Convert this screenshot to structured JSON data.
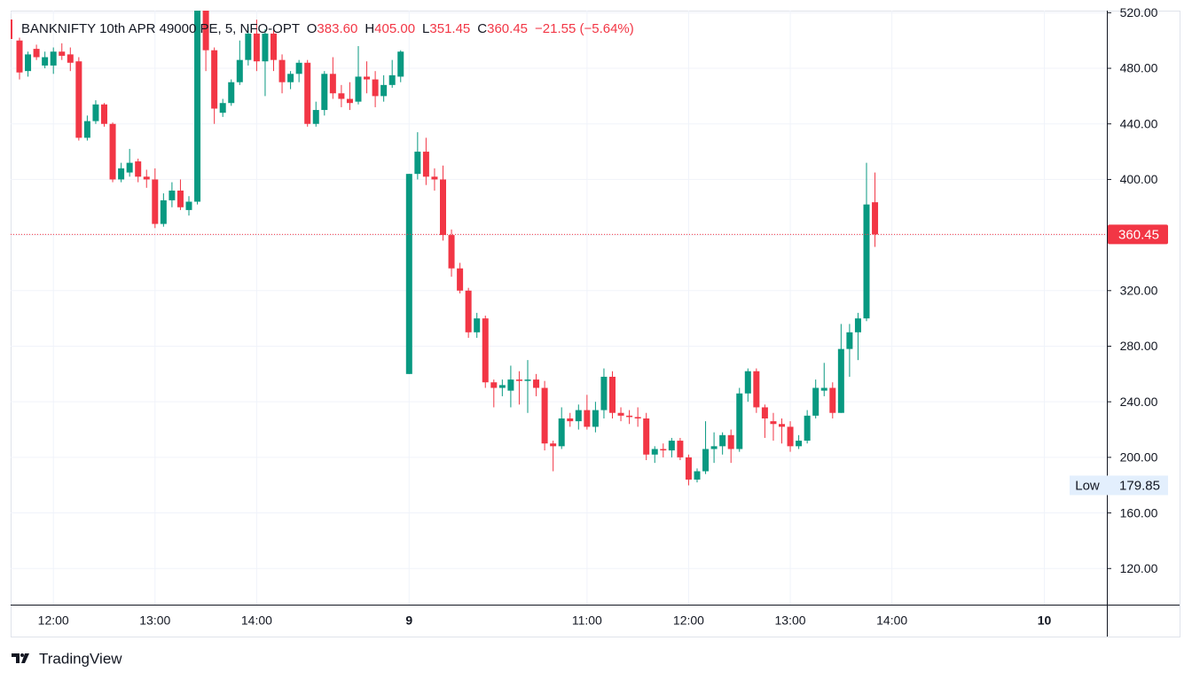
{
  "chart_data": {
    "type": "candlestick",
    "legend": {
      "symbol": "BANKNIFTY 10th APR 49000 PE, 5, NFO-OPT",
      "o_label": "O",
      "o": "383.60",
      "h_label": "H",
      "h": "405.00",
      "l_label": "L",
      "l": "351.45",
      "c_label": "C",
      "c": "360.45",
      "change": "−21.55 (−5.64%)"
    },
    "last_price_label": "360.45",
    "low_label": {
      "text": "Low",
      "value": "179.85"
    },
    "brand": "TradingView",
    "up_color": "#089981",
    "down_color": "#f23645",
    "grid": true,
    "ylim": [
      94,
      521.5
    ],
    "yticks": [
      {
        "value": 120,
        "label": "120.00"
      },
      {
        "value": 160,
        "label": "160.00"
      },
      {
        "value": 200,
        "label": "200.00"
      },
      {
        "value": 240,
        "label": "240.00"
      },
      {
        "value": 280,
        "label": "280.00"
      },
      {
        "value": 320,
        "label": "320.00"
      },
      {
        "value": 360,
        "label": "360.00"
      },
      {
        "value": 400,
        "label": "400.00"
      },
      {
        "value": 440,
        "label": "440.00"
      },
      {
        "value": 480,
        "label": "480.00"
      },
      {
        "value": 520,
        "label": "520.00"
      }
    ],
    "categories": [
      null,
      null,
      null,
      null,
      "12:00",
      null,
      null,
      null,
      null,
      null,
      null,
      null,
      null,
      null,
      null,
      null,
      "13:00",
      null,
      null,
      null,
      null,
      null,
      null,
      null,
      null,
      null,
      null,
      null,
      "14:00",
      null,
      null,
      null,
      null,
      null,
      null,
      null,
      null,
      null,
      null,
      null,
      null,
      null,
      null,
      null,
      null,
      null,
      "9",
      null,
      null,
      null,
      null,
      null,
      null,
      null,
      null,
      null,
      null,
      null,
      null,
      null,
      null,
      null,
      null,
      null,
      null,
      null,
      null,
      "11:00",
      null,
      null,
      null,
      null,
      null,
      null,
      null,
      null,
      null,
      null,
      null,
      "12:00",
      null,
      null,
      null,
      null,
      null,
      null,
      null,
      null,
      null,
      null,
      null,
      "13:00",
      null,
      null,
      null,
      null,
      null,
      null,
      null,
      null,
      null,
      null,
      null,
      "14:00",
      null,
      null,
      null,
      null,
      null,
      null,
      null,
      null,
      null,
      null,
      null,
      null,
      null,
      null,
      null,
      null,
      null,
      "10",
      null,
      null,
      null,
      null,
      null,
      null
    ],
    "open": [
      500,
      478,
      494,
      482,
      482,
      492,
      490,
      485,
      430,
      442,
      454,
      440,
      400,
      405,
      413,
      402,
      400,
      368,
      385,
      392,
      378,
      384,
      525,
      493,
      448,
      455,
      470,
      486,
      505,
      485,
      505,
      486,
      470,
      476,
      484,
      440,
      450,
      476,
      462,
      458,
      456,
      474,
      472,
      460,
      468,
      474,
      260,
      404,
      420,
      402,
      400,
      360,
      336,
      320,
      290,
      300,
      254,
      250,
      248,
      256,
      255,
      256,
      250,
      210,
      208,
      228,
      226,
      234,
      222,
      234,
      258,
      232,
      230,
      229,
      228,
      202,
      206,
      205,
      212,
      200,
      184,
      190,
      206,
      208,
      216,
      206,
      246,
      262,
      236,
      226,
      224,
      222,
      208,
      212,
      230,
      248,
      250,
      232,
      278,
      290,
      300,
      383.6,
      null,
      null,
      null,
      null,
      null,
      null,
      null,
      null,
      null,
      null,
      null,
      null,
      null,
      null,
      null,
      null,
      null,
      null,
      null,
      null,
      null,
      null,
      null,
      null,
      null,
      null
    ],
    "high": [
      502,
      492,
      497,
      492,
      495,
      498,
      495,
      488,
      446,
      457,
      455,
      441,
      412,
      422,
      415,
      407,
      408,
      390,
      398,
      400,
      388,
      540,
      530,
      495,
      458,
      472,
      500,
      510,
      515,
      508,
      508,
      490,
      478,
      486,
      486,
      456,
      478,
      488,
      468,
      470,
      496,
      485,
      478,
      475,
      486,
      493,
      404,
      434,
      430,
      408,
      410,
      364,
      340,
      322,
      304,
      302,
      256,
      256,
      266,
      262,
      270,
      260,
      255,
      212,
      236,
      232,
      238,
      245,
      240,
      264,
      262,
      236,
      234,
      236,
      232,
      208,
      210,
      214,
      214,
      202,
      192,
      226,
      218,
      218,
      220,
      250,
      264,
      264,
      238,
      232,
      228,
      226,
      216,
      234,
      256,
      268,
      254,
      296,
      296,
      304,
      412,
      405,
      null,
      null,
      null,
      null,
      null,
      null,
      null,
      null,
      null,
      null,
      null,
      null,
      null,
      null,
      null,
      null,
      null,
      null,
      null,
      null,
      null,
      null,
      null,
      null,
      null,
      null
    ],
    "low": [
      472,
      474,
      486,
      480,
      476,
      486,
      478,
      428,
      428,
      440,
      438,
      398,
      398,
      402,
      398,
      394,
      365,
      366,
      380,
      378,
      374,
      382,
      478,
      440,
      445,
      453,
      468,
      482,
      478,
      460,
      478,
      462,
      465,
      470,
      438,
      438,
      446,
      458,
      452,
      450,
      454,
      462,
      452,
      456,
      466,
      470,
      260,
      400,
      396,
      392,
      356,
      330,
      318,
      286,
      286,
      250,
      236,
      244,
      236,
      238,
      232,
      244,
      205,
      190,
      206,
      222,
      220,
      220,
      218,
      228,
      228,
      226,
      224,
      222,
      198,
      196,
      200,
      200,
      198,
      179.85,
      182,
      188,
      196,
      202,
      196,
      204,
      240,
      232,
      214,
      212,
      210,
      204,
      206,
      210,
      228,
      244,
      228,
      232,
      258,
      270,
      298,
      351.45,
      null,
      null,
      null,
      null,
      null,
      null,
      null,
      null,
      null,
      null,
      null,
      null,
      null,
      null,
      null,
      null,
      null,
      null,
      null,
      null,
      null,
      null,
      null,
      null,
      null,
      null
    ],
    "close": [
      477,
      490,
      488,
      488,
      492,
      489,
      484,
      430,
      442,
      454,
      440,
      400,
      408,
      412,
      402,
      400,
      368,
      385,
      392,
      380,
      384,
      530,
      493,
      451,
      455,
      470,
      486,
      505,
      485,
      505,
      486,
      470,
      476,
      484,
      440,
      450,
      476,
      462,
      458,
      455,
      474,
      472,
      460,
      468,
      475,
      492,
      404,
      420,
      402,
      400,
      360,
      336,
      320,
      290,
      300,
      254,
      250,
      252,
      256,
      255,
      256,
      250,
      210,
      208,
      228,
      226,
      234,
      222,
      234,
      258,
      232,
      230,
      229,
      228,
      202,
      206,
      205,
      212,
      200,
      184,
      190,
      206,
      208,
      216,
      206,
      246,
      262,
      236,
      228,
      224,
      222,
      208,
      212,
      230,
      250,
      250,
      232,
      278,
      290,
      300,
      382,
      360.45,
      null,
      null,
      null,
      null,
      null,
      null,
      null,
      null,
      null,
      null,
      null,
      null,
      null,
      null,
      null,
      null,
      null,
      null,
      null,
      null,
      null,
      null,
      null,
      null,
      null,
      null
    ]
  }
}
